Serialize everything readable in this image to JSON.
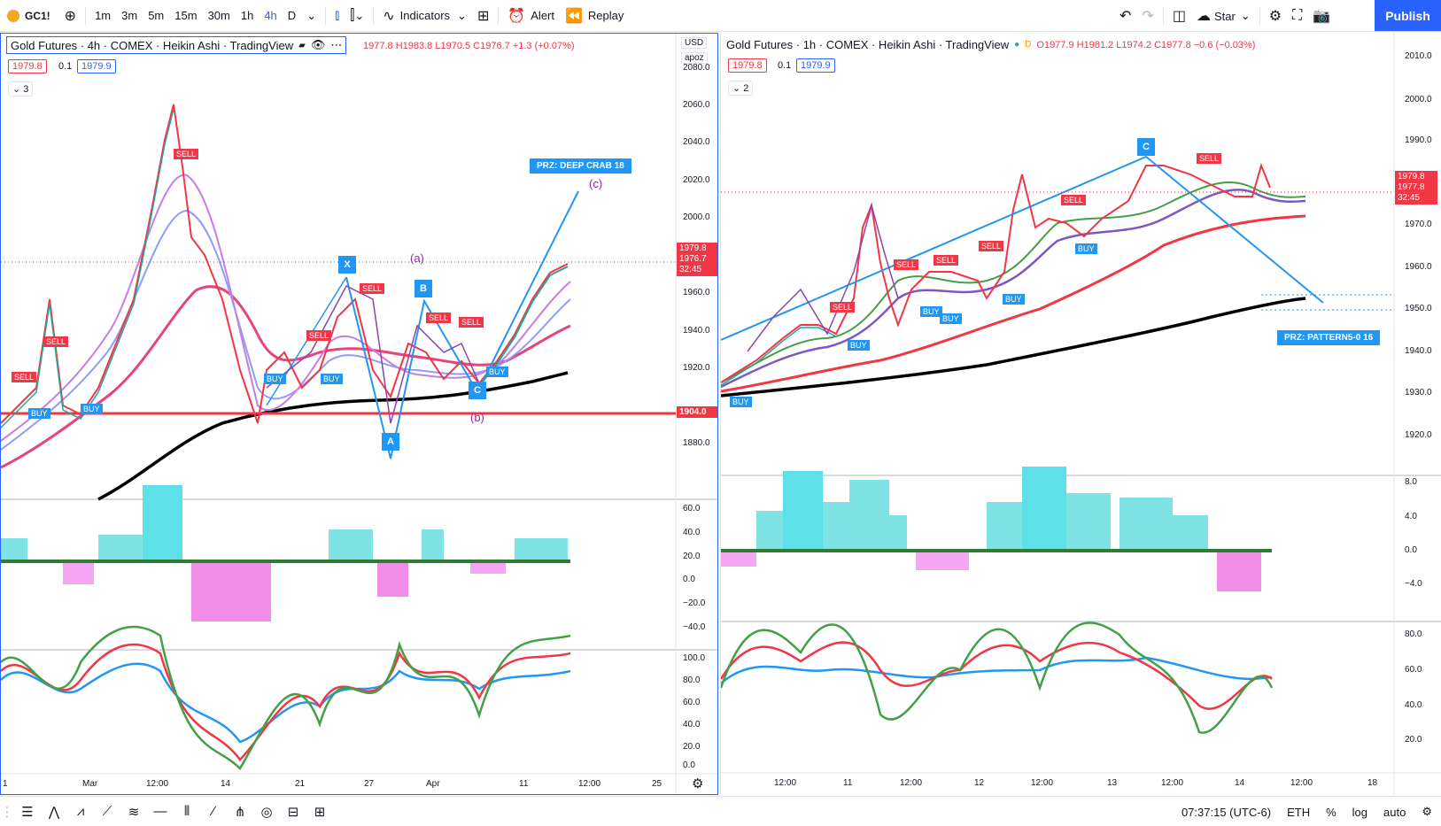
{
  "toolbar": {
    "symbol": "GC1!",
    "intervals": [
      "1m",
      "3m",
      "5m",
      "15m",
      "30m",
      "1h",
      "4h",
      "D"
    ],
    "active_interval": "4h",
    "indicators_label": "Indicators",
    "alert_label": "Alert",
    "replay_label": "Replay",
    "star_label": "Star",
    "publish_label": "Publish"
  },
  "left_chart": {
    "legend_title": "Gold Futures · 4h · COMEX · Heikin Ashi · TradingView",
    "ohlc": "1977.8 H1983.8 L1970.5 C1976.7 +1.3 (+0.07%)",
    "price_left": "1979.8",
    "tick": "0.1",
    "price_right": "1979.9",
    "collapse_count": "3",
    "currency": "USD",
    "scale_mode": "apoz",
    "price_ticks": [
      "2060.0",
      "2040.0",
      "2020.0",
      "2000.0",
      "1960.0",
      "1940.0",
      "1920.0",
      "1880.0"
    ],
    "top_tick": "2080.0",
    "line_level": "1904.0",
    "last_price": "1979.8",
    "last_close": "1976.7",
    "countdown": "32:45",
    "time_ticks": [
      "1",
      "Mar",
      "12:00",
      "14",
      "21",
      "27",
      "Apr",
      "11",
      "12:00",
      "25"
    ],
    "osc_ticks": [
      "60.0",
      "40.0",
      "20.0",
      "0.0",
      "−20.0",
      "−40.0"
    ],
    "rsi_ticks": [
      "100.0",
      "80.0",
      "60.0",
      "40.0",
      "20.0",
      "0.0"
    ],
    "pattern_label": "PRZ: DEEP CRAB 18",
    "wave_labels": [
      "(a)",
      "(b)",
      "(c)"
    ],
    "point_labels": [
      "X",
      "A",
      "B",
      "C"
    ],
    "signal_sell": "SELL",
    "signal_buy": "BUY"
  },
  "right_chart": {
    "legend_title": "Gold Futures · 1h · COMEX · Heikin Ashi · TradingView",
    "ohlc": "O1977.9 H1981.2 L1974.2 C1977.8 −0.6 (−0.03%)",
    "price_left": "1979.8",
    "tick": "0.1",
    "price_right": "1979.9",
    "collapse_count": "2",
    "price_ticks": [
      "2010.0",
      "2000.0",
      "1990.0",
      "1970.0",
      "1960.0",
      "1950.0",
      "1940.0",
      "1930.0",
      "1920.0"
    ],
    "last_price": "1979.8",
    "last_close": "1977.8",
    "countdown": "32:45",
    "time_ticks": [
      "12:00",
      "11",
      "12:00",
      "12",
      "12:00",
      "13",
      "12:00",
      "14",
      "12:00",
      "18"
    ],
    "osc_ticks": [
      "8.0",
      "4.0",
      "0.0",
      "−4.0"
    ],
    "rsi_ticks": [
      "80.0",
      "60.0",
      "40.0",
      "20.0"
    ],
    "pattern_label": "PRZ: PATTERN5-0 16",
    "point_label": "C",
    "signal_sell": "SELL",
    "signal_buy": "BUY"
  },
  "status": {
    "time": "07:37:15 (UTC-6)",
    "session": "ETH",
    "percent": "%",
    "log": "log",
    "auto": "auto"
  }
}
